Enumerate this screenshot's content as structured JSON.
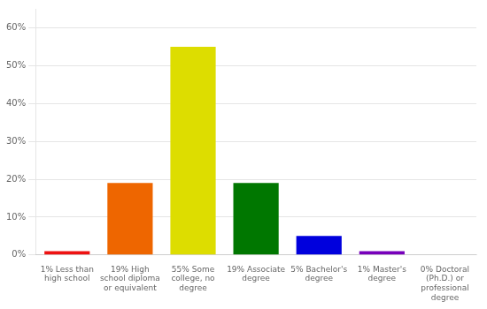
{
  "chart_data": {
    "type": "bar",
    "categories": [
      "1% Less than\nhigh school",
      "19% High\nschool diploma\nor equivalent",
      "55% Some\ncollege, no\ndegree",
      "19% Associate\ndegree",
      "5% Bachelor's\ndegree",
      "1% Master's\ndegree",
      "0% Doctoral\n(Ph.D.) or\nprofessional\ndegree"
    ],
    "values": [
      1,
      19,
      55,
      19,
      5,
      1,
      0
    ],
    "colors": [
      "#ee1111",
      "#ee6600",
      "#dddd00",
      "#007700",
      "#0000dd",
      "#7700bb",
      "#ee00ee"
    ],
    "ylim": [
      0,
      65
    ],
    "yticks": [
      {
        "value": 0,
        "label": "0%"
      },
      {
        "value": 10,
        "label": "10%"
      },
      {
        "value": 20,
        "label": "20%"
      },
      {
        "value": 30,
        "label": "30%"
      },
      {
        "value": 40,
        "label": "40%"
      },
      {
        "value": 50,
        "label": "50%"
      },
      {
        "value": 60,
        "label": "60%"
      }
    ],
    "grid": true
  }
}
